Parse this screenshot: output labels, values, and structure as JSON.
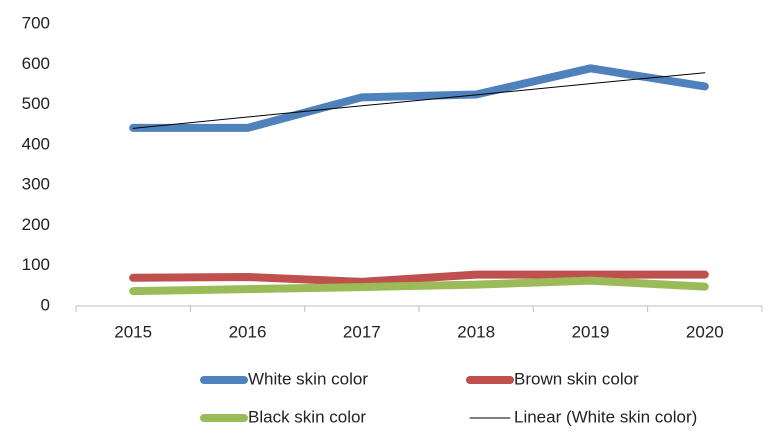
{
  "chart_data": {
    "type": "line",
    "categories": [
      "2015",
      "2016",
      "2017",
      "2018",
      "2019",
      "2020"
    ],
    "series": [
      {
        "name": "White skin color",
        "color": "#4f81bd",
        "width": 8,
        "values": [
          442,
          442,
          518,
          525,
          590,
          545
        ]
      },
      {
        "name": "Brown skin color",
        "color": "#c0504d",
        "width": 8,
        "values": [
          70,
          72,
          60,
          78,
          78,
          78
        ]
      },
      {
        "name": "Black skin color",
        "color": "#9bbb59",
        "width": 8,
        "values": [
          37,
          42,
          47,
          53,
          63,
          48
        ]
      },
      {
        "name": "Linear (White skin color)",
        "color": "#000000",
        "width": 1,
        "values": [
          441,
          469,
          497,
          524,
          552,
          579
        ]
      }
    ],
    "ylim": [
      0,
      700
    ],
    "yticks": [
      0,
      100,
      200,
      300,
      400,
      500,
      600,
      700
    ],
    "grid": false,
    "legend": "bottom"
  }
}
